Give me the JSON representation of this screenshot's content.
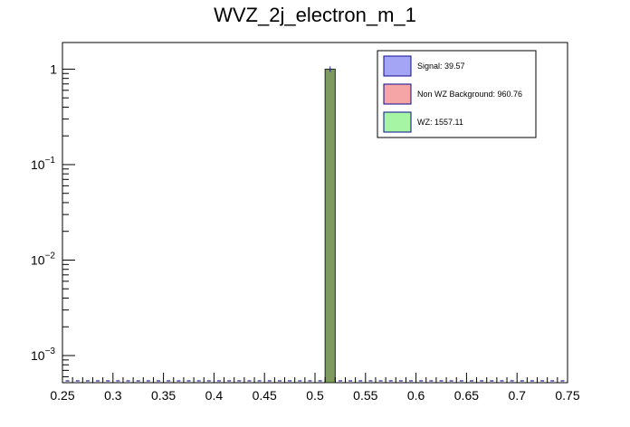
{
  "chart_data": {
    "type": "bar",
    "title": "WVZ_2j_electron_m_1",
    "xlabel": "",
    "ylabel": "",
    "x_range": [
      0.25,
      0.75
    ],
    "y_range": [
      0.00052,
      1.9
    ],
    "y_scale": "log",
    "grid": false,
    "legend_placement": "top-right",
    "x_ticks": [
      "0.25",
      "0.3",
      "0.35",
      "0.4",
      "0.45",
      "0.5",
      "0.55",
      "0.6",
      "0.65",
      "0.7",
      "0.75"
    ],
    "y_ticks": [
      {
        "value": 1,
        "base": "1",
        "exp": ""
      },
      {
        "value": 0.1,
        "base": "10",
        "exp": "−1"
      },
      {
        "value": 0.01,
        "base": "10",
        "exp": "−2"
      },
      {
        "value": 0.001,
        "base": "10",
        "exp": "−3"
      }
    ],
    "bin_width": 0.01,
    "bars": [
      {
        "x0": 0.51,
        "x1": 0.52,
        "value": 1.0
      }
    ],
    "series": [
      {
        "name": "Signal: 39.57",
        "color": "#a5a5f5",
        "edge": "#0a0a8c"
      },
      {
        "name": "Non WZ Background: 960.76",
        "color": "#f5a5a5",
        "edge": "#0a0a8c"
      },
      {
        "name": "WZ: 1557.11",
        "color": "#a5f5a5",
        "edge": "#0a0a8c"
      }
    ],
    "stack_color": "#7e9a5e",
    "error_color": "#1c1c8c"
  }
}
